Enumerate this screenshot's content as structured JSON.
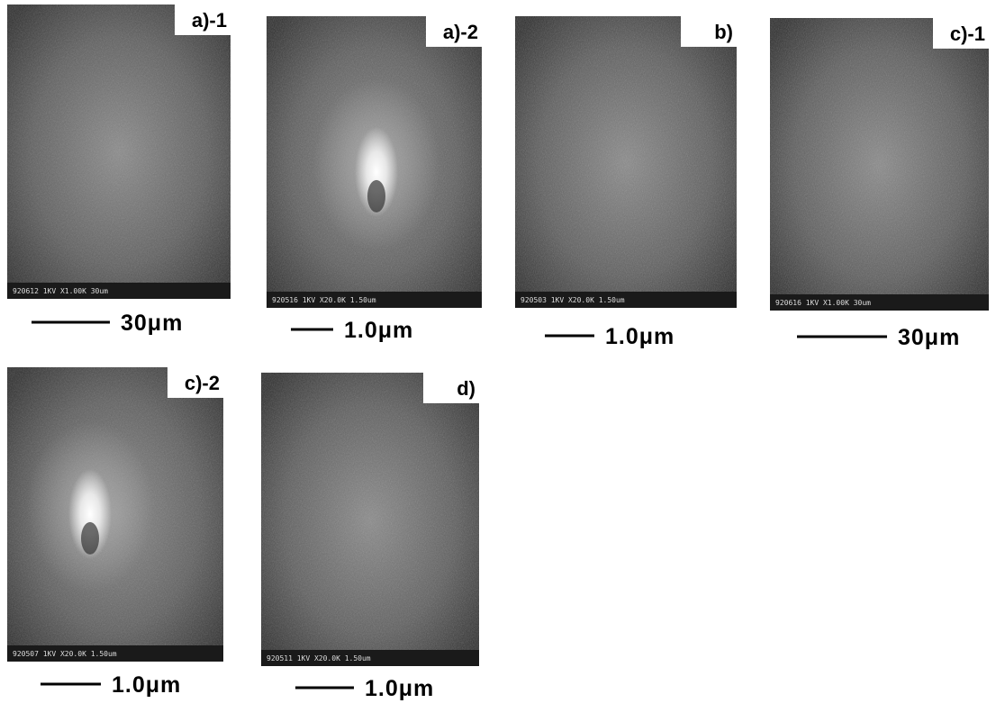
{
  "panels": [
    {
      "label": "a)-1",
      "footer": "920612  1KV X1.00K   30um",
      "scale": "30μm"
    },
    {
      "label": "a)-2",
      "footer": "920516  1KV X20.0K 1.50um",
      "scale": "1.0μm"
    },
    {
      "label": "b)",
      "footer": "920503  1KV X20.0K 1.50um",
      "scale": "1.0μm"
    },
    {
      "label": "c)-1",
      "footer": "920616  1KV X1.00K   30um",
      "scale": "30μm"
    },
    {
      "label": "c)-2",
      "footer": "920507  1KV X20.0K 1.50um",
      "scale": "1.0μm"
    },
    {
      "label": "d)",
      "footer": "920511  1KV X20.0K 1.50um",
      "scale": "1.0μm"
    }
  ]
}
